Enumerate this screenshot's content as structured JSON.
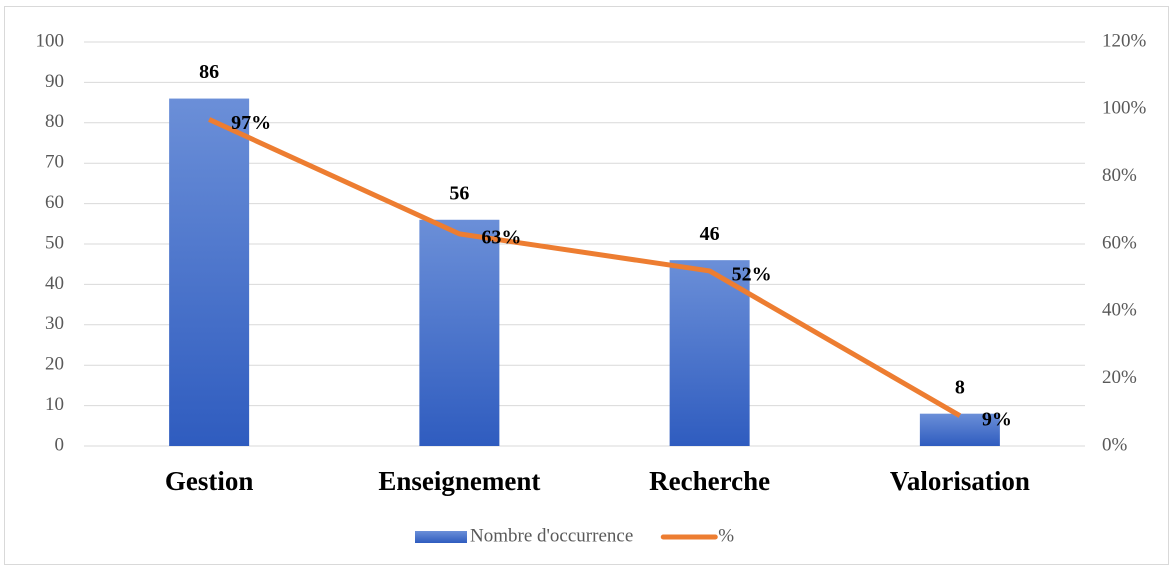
{
  "chart_data": {
    "type": "bar",
    "categories": [
      "Gestion",
      "Enseignement",
      "Recherche",
      "Valorisation"
    ],
    "series": [
      {
        "name": "Nombre d'occurrence",
        "type": "bar",
        "color": "#4472c4",
        "values": [
          86,
          56,
          46,
          8
        ]
      },
      {
        "name": "%",
        "type": "line",
        "axis": "y2",
        "color": "#ed7d31",
        "values": [
          97,
          63,
          52,
          9
        ],
        "value_labels": [
          "97%",
          "63%",
          "52%",
          "9%"
        ]
      }
    ],
    "ylim": [
      0,
      100
    ],
    "yticks": [
      0,
      10,
      20,
      30,
      40,
      50,
      60,
      70,
      80,
      90,
      100
    ],
    "y2lim": [
      0,
      120
    ],
    "y2ticks": [
      {
        "value": 0,
        "label": "0%"
      },
      {
        "value": 20,
        "label": "20%"
      },
      {
        "value": 40,
        "label": "40%"
      },
      {
        "value": 60,
        "label": "60%"
      },
      {
        "value": 80,
        "label": "80%"
      },
      {
        "value": 100,
        "label": "100%"
      },
      {
        "value": 120,
        "label": "120%"
      }
    ],
    "grid": true,
    "legend": "bottom"
  }
}
